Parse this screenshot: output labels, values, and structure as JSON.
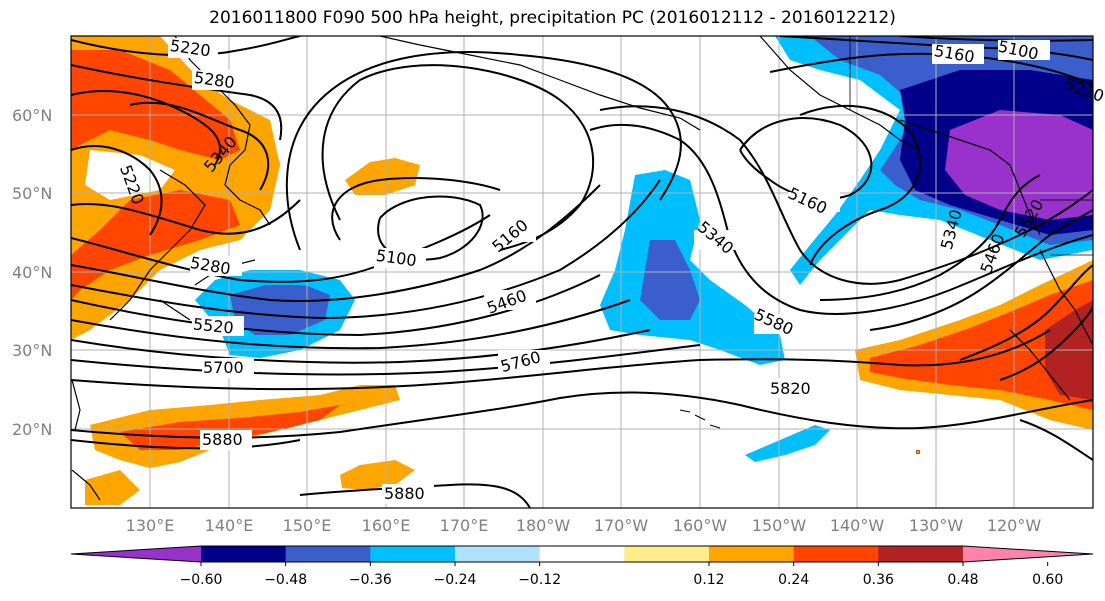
{
  "title": "2016011800 F090 500 hPa height, precipitation PC (2016012112 - 2016012212)",
  "lat_labels": [
    "60°N",
    "50°N",
    "40°N",
    "30°N",
    "20°N"
  ],
  "lon_labels": [
    "130°E",
    "140°E",
    "150°E",
    "160°E",
    "170°E",
    "180°W",
    "170°W",
    "160°W",
    "150°W",
    "140°W",
    "130°W",
    "120°W"
  ],
  "contour_labels": [
    "5220",
    "5280",
    "5340",
    "5220",
    "5280",
    "5520",
    "5700",
    "5880",
    "5880",
    "5100",
    "5160",
    "5460",
    "5760",
    "5340",
    "5580",
    "5820",
    "5160",
    "5100",
    "5160",
    "5220",
    "5340",
    "5460",
    "5520"
  ],
  "colorbar": {
    "colors": [
      "#9932cc",
      "#00008b",
      "#3a5fcd",
      "#00bfff",
      "#b0e2ff",
      "#ffffff",
      "#ffec8b",
      "#ffa500",
      "#ff4500",
      "#b22222",
      "#ff82ab"
    ],
    "ticks": [
      "−0.60",
      "−0.48",
      "−0.36",
      "−0.24",
      "−0.12",
      "0.12",
      "0.24",
      "0.36",
      "0.48",
      "0.60"
    ]
  }
}
